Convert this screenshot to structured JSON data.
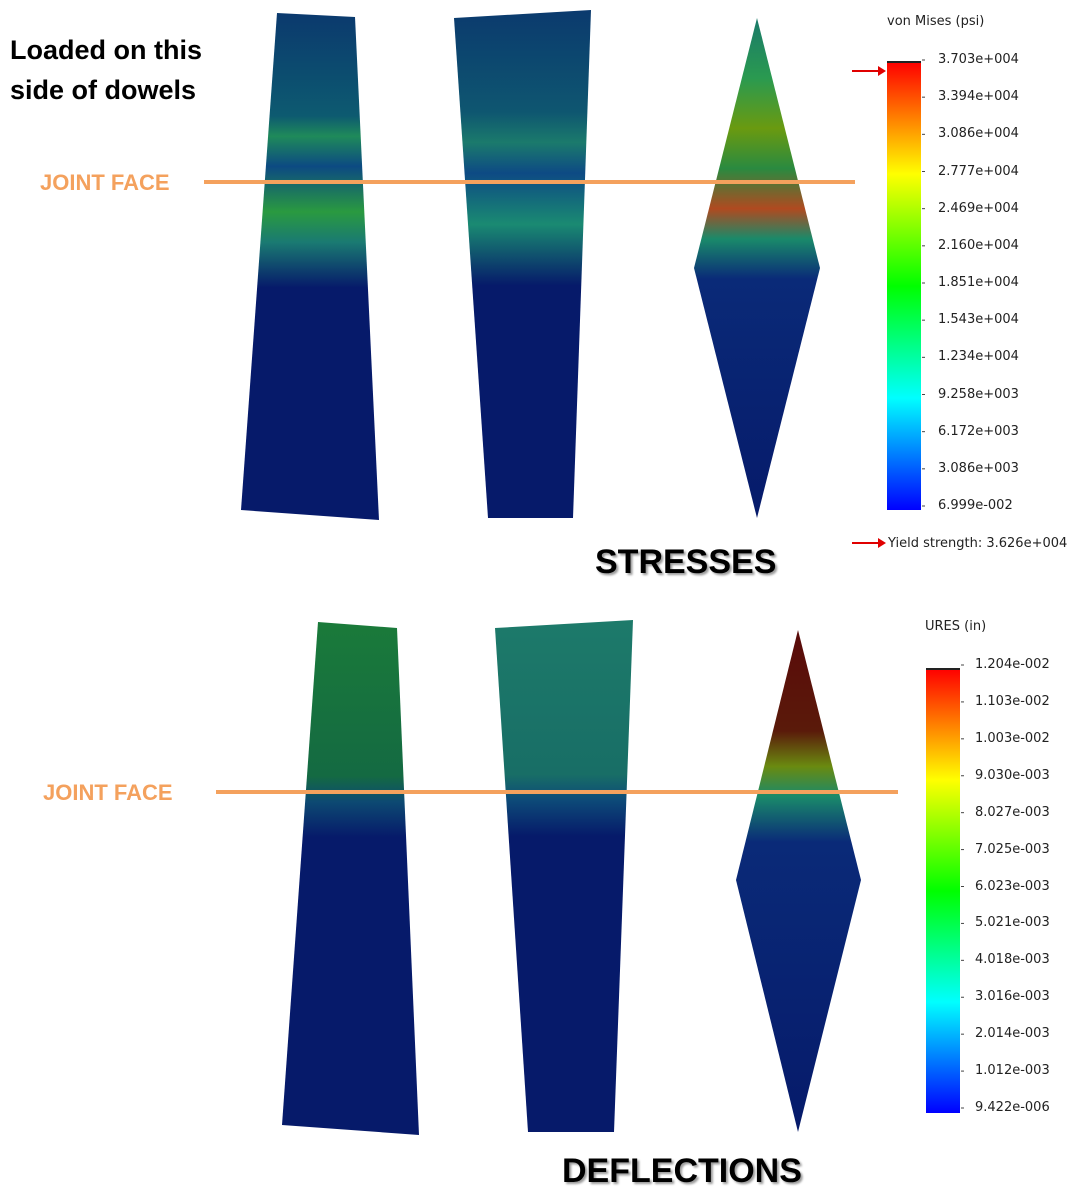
{
  "annotation": {
    "line1": "Loaded on this",
    "line2": "side of dowels"
  },
  "joint_label": "JOINT FACE",
  "accent_color": "#f4a15d",
  "stress_panel": {
    "title": "STRESSES",
    "legend_title": "von Mises (psi)",
    "ticks": [
      "3.703e+004",
      "3.394e+004",
      "3.086e+004",
      "2.777e+004",
      "2.469e+004",
      "2.160e+004",
      "1.851e+004",
      "1.543e+004",
      "1.234e+004",
      "9.258e+003",
      "6.172e+003",
      "3.086e+003",
      "6.999e-002"
    ],
    "yield_label": "Yield strength: 3.626e+004"
  },
  "deflection_panel": {
    "title": "DEFLECTIONS",
    "legend_title": "URES (in)",
    "ticks": [
      "1.204e-002",
      "1.103e-002",
      "1.003e-002",
      "9.030e-003",
      "8.027e-003",
      "7.025e-003",
      "6.023e-003",
      "5.021e-003",
      "4.018e-003",
      "3.016e-003",
      "2.014e-003",
      "1.012e-003",
      "9.422e-006"
    ]
  }
}
